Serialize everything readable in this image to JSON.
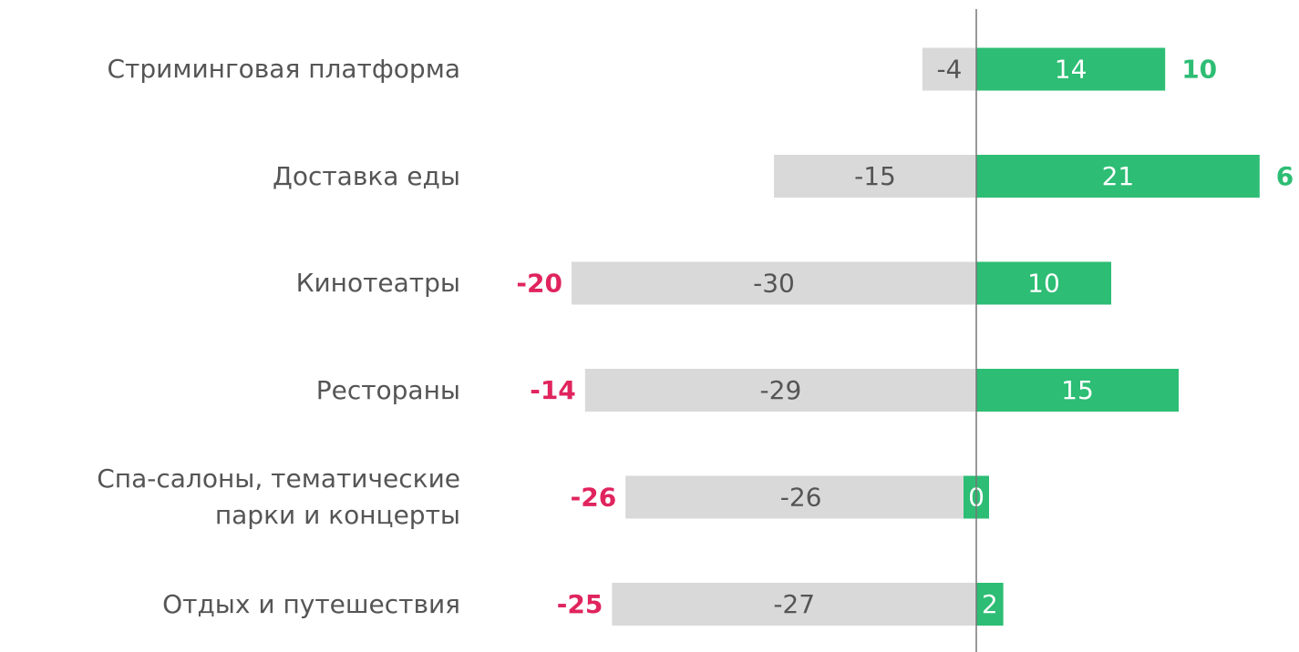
{
  "chart_data": {
    "type": "diverging_bar",
    "categories": [
      "Стриминговая платформа",
      "Доставка еды",
      "Кинотеатры",
      "Рестораны",
      "Спа-салоны, тематические парки и концерты",
      "Отдых и путешествия"
    ],
    "series": [
      {
        "color": "#d9d9d9",
        "values": [
          -4,
          -15,
          -30,
          -29,
          -26,
          -27
        ]
      },
      {
        "color": "#2dbd74",
        "values": [
          14,
          21,
          10,
          15,
          0,
          2
        ]
      }
    ],
    "net": {
      "values": [
        10,
        6,
        -20,
        -14,
        -26,
        -25
      ],
      "positive_color": "#2dbd74",
      "negative_color": "#e0245e"
    }
  }
}
